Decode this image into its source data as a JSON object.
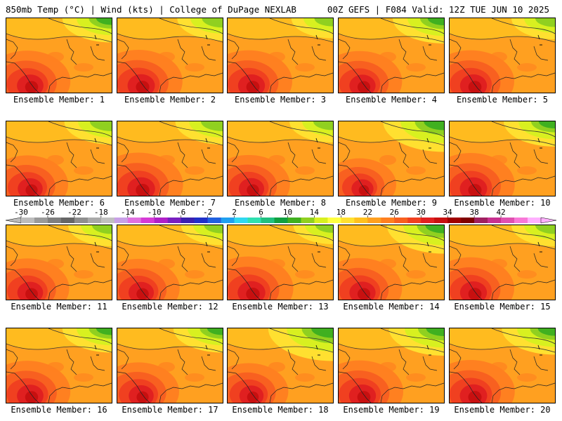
{
  "header": {
    "title_left": "850mb Temp (°C) | Wind (kts) | College of DuPage NEXLAB",
    "title_right": "00Z GEFS | F084 Valid: 12Z TUE JUN 10 2025"
  },
  "panels": [
    {
      "label": "Ensemble Member: 1",
      "intensity": 0.78,
      "cool_ne": 0.55
    },
    {
      "label": "Ensemble Member: 2",
      "intensity": 0.82,
      "cool_ne": 0.45
    },
    {
      "label": "Ensemble Member: 3",
      "intensity": 0.8,
      "cool_ne": 0.35
    },
    {
      "label": "Ensemble Member: 4",
      "intensity": 0.76,
      "cool_ne": 0.6
    },
    {
      "label": "Ensemble Member: 5",
      "intensity": 0.8,
      "cool_ne": 0.4
    },
    {
      "label": "Ensemble Member: 6",
      "intensity": 0.7,
      "cool_ne": 0.5
    },
    {
      "label": "Ensemble Member: 7",
      "intensity": 0.84,
      "cool_ne": 0.5
    },
    {
      "label": "Ensemble Member: 8",
      "intensity": 0.72,
      "cool_ne": 0.4
    },
    {
      "label": "Ensemble Member: 9",
      "intensity": 0.55,
      "cool_ne": 0.85
    },
    {
      "label": "Ensemble Member: 10",
      "intensity": 0.82,
      "cool_ne": 0.6
    },
    {
      "label": "Ensemble Member: 11",
      "intensity": 0.74,
      "cool_ne": 0.4
    },
    {
      "label": "Ensemble Member: 12",
      "intensity": 0.72,
      "cool_ne": 0.35
    },
    {
      "label": "Ensemble Member: 13",
      "intensity": 0.84,
      "cool_ne": 0.3
    },
    {
      "label": "Ensemble Member: 14",
      "intensity": 0.76,
      "cool_ne": 0.75
    },
    {
      "label": "Ensemble Member: 15",
      "intensity": 0.8,
      "cool_ne": 0.4
    },
    {
      "label": "Ensemble Member: 16",
      "intensity": 0.78,
      "cool_ne": 0.55
    },
    {
      "label": "Ensemble Member: 17",
      "intensity": 0.7,
      "cool_ne": 0.55
    },
    {
      "label": "Ensemble Member: 18",
      "intensity": 0.66,
      "cool_ne": 0.95
    },
    {
      "label": "Ensemble Member: 19",
      "intensity": 0.8,
      "cool_ne": 0.7
    },
    {
      "label": "Ensemble Member: 20",
      "intensity": 0.82,
      "cool_ne": 0.65
    }
  ],
  "colorbar": {
    "tick_labels": [
      "-30",
      "-26",
      "-22",
      "-18",
      "-14",
      "-10",
      "-6",
      "-2",
      "2",
      "6",
      "10",
      "14",
      "18",
      "22",
      "26",
      "30",
      "34",
      "38",
      "42"
    ],
    "colors": [
      "#bcbcbc",
      "#9a9a9a",
      "#7f7f7f",
      "#666666",
      "#8f8f8f",
      "#a9a9a9",
      "#c0c0c0",
      "#c8a0e6",
      "#e070e0",
      "#d63ad6",
      "#b020c8",
      "#7820c0",
      "#3a20b0",
      "#2030c8",
      "#2060e0",
      "#20a0f0",
      "#30d8f0",
      "#30e0b0",
      "#20c080",
      "#10a040",
      "#40b020",
      "#90d020",
      "#d8f020",
      "#ffff40",
      "#ffe030",
      "#ffc020",
      "#ffa020",
      "#ff8020",
      "#f86020",
      "#f04020",
      "#e02020",
      "#c81010",
      "#a00000",
      "#800000",
      "#a02060",
      "#c83090",
      "#e050b0",
      "#f878d8",
      "#ffb0ff"
    ]
  }
}
